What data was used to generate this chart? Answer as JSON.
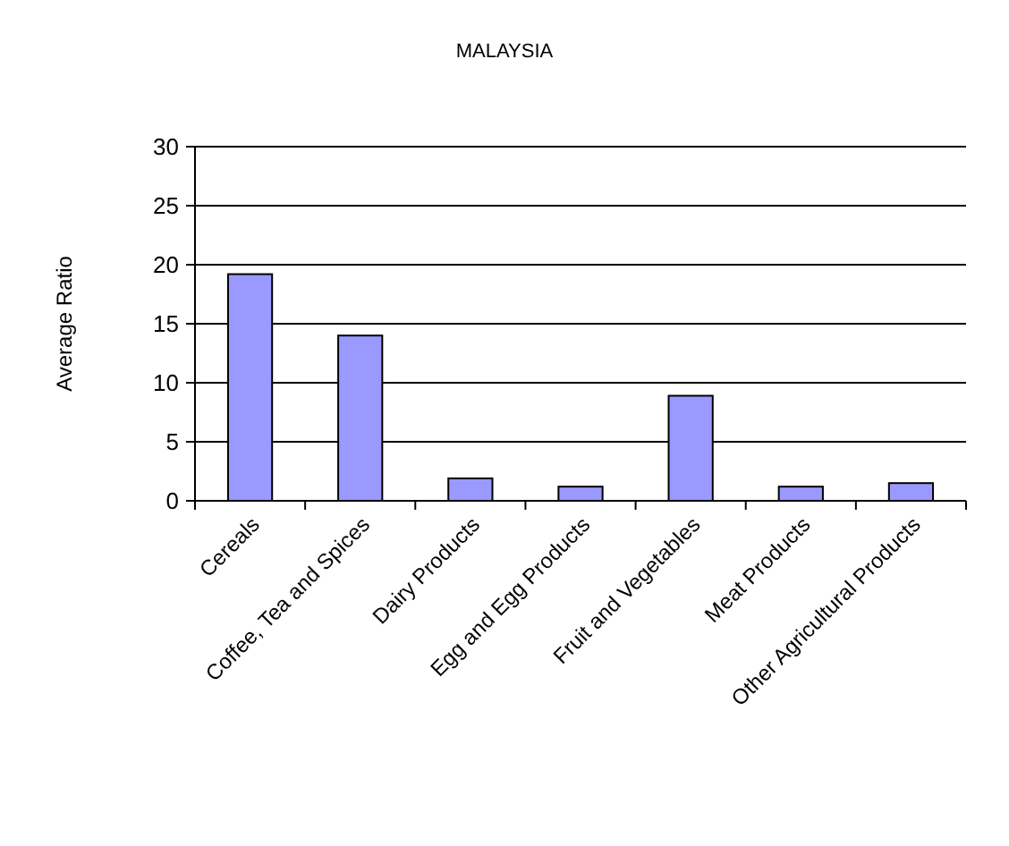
{
  "chart_data": {
    "type": "bar",
    "title": "MALAYSIA",
    "ylabel": "Average Ratio",
    "categories": [
      "Cereals",
      "Coffee, Tea and Spices",
      "Dairy Products",
      "Egg and Egg Products",
      "Fruit and Vegetables",
      "Meat Products",
      "Other Agricultural Products"
    ],
    "values": [
      19.2,
      14.0,
      1.9,
      1.2,
      8.9,
      1.2,
      1.5
    ],
    "color": "#9999ff",
    "ylim": [
      0,
      30
    ],
    "yticks": [
      0,
      5,
      10,
      15,
      20,
      25,
      30
    ],
    "grid": "y"
  }
}
